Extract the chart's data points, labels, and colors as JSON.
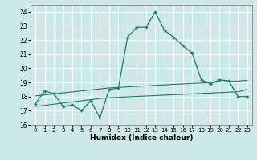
{
  "xlabel": "Humidex (Indice chaleur)",
  "background_color": "#cce8e8",
  "grid_color": "#ffffff",
  "line_color": "#1a7a6e",
  "xlim": [
    -0.5,
    23.5
  ],
  "ylim": [
    16,
    24.5
  ],
  "yticks": [
    16,
    17,
    18,
    19,
    20,
    21,
    22,
    23,
    24
  ],
  "xticks": [
    0,
    1,
    2,
    3,
    4,
    5,
    6,
    7,
    8,
    9,
    10,
    11,
    12,
    13,
    14,
    15,
    16,
    17,
    18,
    19,
    20,
    21,
    22,
    23
  ],
  "line1_x": [
    0,
    1,
    2,
    3,
    4,
    5,
    6,
    7,
    8,
    9,
    10,
    11,
    12,
    13,
    14,
    15,
    16,
    17,
    18,
    19,
    20,
    21,
    22,
    23
  ],
  "line1_y": [
    17.5,
    18.4,
    18.2,
    17.3,
    17.4,
    17.0,
    17.7,
    16.5,
    18.5,
    18.6,
    22.2,
    22.9,
    22.9,
    24.0,
    22.7,
    22.2,
    21.6,
    21.1,
    19.2,
    18.9,
    19.2,
    19.1,
    18.0,
    18.0
  ],
  "line2_x": [
    0,
    1,
    2,
    3,
    4,
    5,
    6,
    7,
    8,
    9,
    10,
    11,
    12,
    13,
    14,
    15,
    16,
    17,
    18,
    19,
    20,
    21,
    22,
    23
  ],
  "line2_y": [
    18.05,
    18.12,
    18.19,
    18.26,
    18.33,
    18.4,
    18.47,
    18.54,
    18.61,
    18.65,
    18.68,
    18.72,
    18.75,
    18.79,
    18.82,
    18.86,
    18.89,
    18.93,
    18.96,
    19.0,
    19.03,
    19.07,
    19.1,
    19.14
  ],
  "line3_x": [
    0,
    1,
    2,
    3,
    4,
    5,
    6,
    7,
    8,
    9,
    10,
    11,
    12,
    13,
    14,
    15,
    16,
    17,
    18,
    19,
    20,
    21,
    22,
    23
  ],
  "line3_y": [
    17.3,
    17.38,
    17.46,
    17.54,
    17.62,
    17.7,
    17.78,
    17.86,
    17.92,
    17.95,
    17.98,
    18.01,
    18.04,
    18.07,
    18.1,
    18.13,
    18.16,
    18.19,
    18.22,
    18.25,
    18.28,
    18.31,
    18.34,
    18.5
  ]
}
